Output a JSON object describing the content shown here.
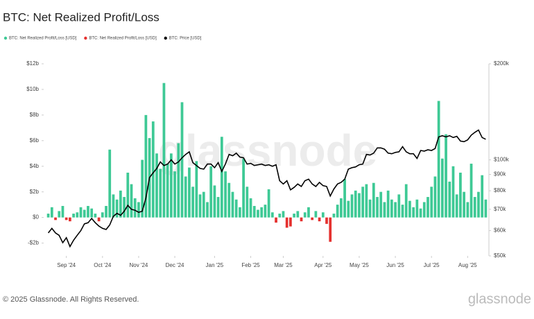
{
  "chart_data": {
    "type": "bar",
    "title": "BTC: Net Realized Profit/Loss",
    "watermark": "glassnode",
    "categories": [
      null,
      null,
      null,
      null,
      null,
      "Sep '24",
      null,
      null,
      null,
      null,
      null,
      null,
      null,
      null,
      null,
      "Oct '24",
      null,
      null,
      null,
      null,
      null,
      null,
      null,
      null,
      null,
      "Nov '24",
      null,
      null,
      null,
      null,
      null,
      null,
      null,
      null,
      null,
      "Dec '24",
      null,
      null,
      null,
      null,
      null,
      null,
      null,
      null,
      null,
      null,
      "Jan '25",
      null,
      null,
      null,
      null,
      null,
      null,
      null,
      null,
      null,
      "Feb '25",
      null,
      null,
      null,
      null,
      null,
      null,
      null,
      null,
      "Mar '25",
      null,
      null,
      null,
      null,
      null,
      null,
      null,
      null,
      null,
      null,
      "Apr '25",
      null,
      null,
      null,
      null,
      null,
      null,
      null,
      null,
      null,
      "May '25",
      null,
      null,
      null,
      null,
      null,
      null,
      null,
      null,
      null,
      "Jun '25",
      null,
      null,
      null,
      null,
      null,
      null,
      null,
      null,
      null,
      "Jul '25",
      null,
      null,
      null,
      null,
      null,
      null,
      null,
      null,
      null,
      "Aug '25",
      null,
      null,
      null,
      null,
      null
    ],
    "series": [
      {
        "name": "BTC: Net Realized Profit/Loss [USD]",
        "color": "#3ec995",
        "values": [
          0.3,
          0.8,
          null,
          0.5,
          0.9,
          null,
          null,
          0.3,
          0.4,
          0.8,
          0.6,
          0.9,
          0.7,
          0.3,
          null,
          0.4,
          0.9,
          5.3,
          1.8,
          1.4,
          2.1,
          1.6,
          3.5,
          2.6,
          1.5,
          1.2,
          4.5,
          8.0,
          6.2,
          7.5,
          5.0,
          3.8,
          10.5,
          4.2,
          5.0,
          3.6,
          5.8,
          9.0,
          3.2,
          3.9,
          2.4,
          4.4,
          1.8,
          2.0,
          1.2,
          4.0,
          2.5,
          1.6,
          6.3,
          3.6,
          2.7,
          2.0,
          1.4,
          0.8,
          4.6,
          2.4,
          1.5,
          0.9,
          0.6,
          0.8,
          1.0,
          2.2,
          0.4,
          null,
          0.3,
          0.5,
          null,
          null,
          0.3,
          0.5,
          null,
          0.4,
          0.8,
          null,
          0.5,
          null,
          0.4,
          null,
          null,
          0.3,
          1.0,
          1.5,
          3.0,
          1.3,
          1.8,
          2.1,
          1.9,
          2.4,
          2.6,
          1.4,
          2.7,
          1.6,
          2.0,
          1.2,
          2.1,
          1.4,
          1.2,
          1.8,
          1.0,
          2.6,
          1.3,
          0.8,
          1.4,
          0.7,
          1.2,
          1.6,
          2.4,
          3.2,
          9.1,
          4.6,
          6.5,
          2.8,
          4.0,
          1.8,
          3.5,
          2.0,
          1.2,
          4.2,
          1.6,
          2.0,
          3.3,
          1.4
        ]
      },
      {
        "name": "BTC: Net Realized Profit/Loss [USD]",
        "color": "#e5312f",
        "values": [
          null,
          null,
          -0.2,
          null,
          null,
          -0.2,
          -0.3,
          null,
          null,
          null,
          null,
          null,
          null,
          null,
          -0.3,
          null,
          null,
          null,
          null,
          null,
          null,
          null,
          null,
          null,
          null,
          null,
          null,
          null,
          null,
          null,
          null,
          null,
          null,
          null,
          null,
          null,
          null,
          null,
          null,
          null,
          null,
          null,
          null,
          null,
          null,
          null,
          null,
          null,
          null,
          null,
          null,
          null,
          null,
          null,
          null,
          null,
          null,
          null,
          null,
          null,
          null,
          null,
          null,
          -0.4,
          null,
          null,
          -0.8,
          -0.7,
          null,
          null,
          -0.3,
          null,
          null,
          -0.2,
          null,
          -0.3,
          null,
          -0.5,
          -1.9,
          null,
          null,
          null,
          null,
          null,
          null,
          null,
          null,
          null,
          null,
          null,
          null,
          null,
          null,
          null,
          null,
          null,
          null,
          null,
          null,
          null,
          null,
          null,
          null,
          null,
          null,
          null,
          null,
          null,
          null,
          null,
          null,
          null,
          null,
          null,
          null,
          null,
          null,
          null,
          null,
          null,
          null,
          null
        ]
      },
      {
        "name": "BTC: Price [USD]",
        "color": "#000000",
        "axis": "y2",
        "type": "line",
        "values": [
          59000,
          61000,
          59000,
          58000,
          55000,
          57000,
          53500,
          56000,
          58000,
          60000,
          63000,
          63500,
          65500,
          63500,
          62000,
          61000,
          60500,
          62500,
          66500,
          68000,
          67000,
          69000,
          72000,
          70000,
          69500,
          68500,
          69000,
          76000,
          88000,
          91000,
          94000,
          98500,
          96000,
          97000,
          100000,
          97000,
          98500,
          101500,
          104000,
          106000,
          98000,
          96000,
          94000,
          93500,
          97000,
          97000,
          94500,
          98000,
          92000,
          97000,
          104000,
          103000,
          105000,
          102000,
          101500,
          97000,
          97500,
          96000,
          96500,
          97000,
          96000,
          96500,
          95500,
          96500,
          86000,
          84000,
          86000,
          80500,
          82000,
          84000,
          82500,
          86000,
          87000,
          84000,
          82500,
          85000,
          83000,
          82500,
          77000,
          81000,
          84000,
          85000,
          87000,
          93500,
          94500,
          95000,
          96500,
          97000,
          104000,
          103500,
          105000,
          109000,
          109000,
          108000,
          105000,
          104500,
          105500,
          106000,
          110000,
          106000,
          104500,
          104500,
          101000,
          107000,
          106500,
          107500,
          107000,
          108500,
          118000,
          119000,
          118000,
          119000,
          117500,
          118500,
          114500,
          114000,
          115500,
          119500,
          122000,
          124000,
          117500,
          116000
        ]
      }
    ],
    "ylim": [
      -3,
      12
    ],
    "yticks": [
      {
        "value": -2,
        "label": "-$2b"
      },
      {
        "value": 0,
        "label": "$0"
      },
      {
        "value": 2,
        "label": "$2b"
      },
      {
        "value": 4,
        "label": "$4b"
      },
      {
        "value": 6,
        "label": "$6b"
      },
      {
        "value": 8,
        "label": "$8b"
      },
      {
        "value": 10,
        "label": "$10b"
      },
      {
        "value": 12,
        "label": "$12b"
      }
    ],
    "y2lim": [
      50000,
      200000
    ],
    "y2log": true,
    "y2ticks": [
      {
        "value": 50000,
        "label": "$50k"
      },
      {
        "value": 60000,
        "label": "$60k"
      },
      {
        "value": 70000,
        "label": "$70k"
      },
      {
        "value": 80000,
        "label": "$80k"
      },
      {
        "value": 90000,
        "label": "$90k"
      },
      {
        "value": 100000,
        "label": "$100k"
      },
      {
        "value": 200000,
        "label": "$200k"
      }
    ],
    "grid": false,
    "legend": "top-left"
  },
  "footer": {
    "copyright": "© 2025 Glassnode. All Rights Reserved.",
    "logo": "glassnode"
  }
}
